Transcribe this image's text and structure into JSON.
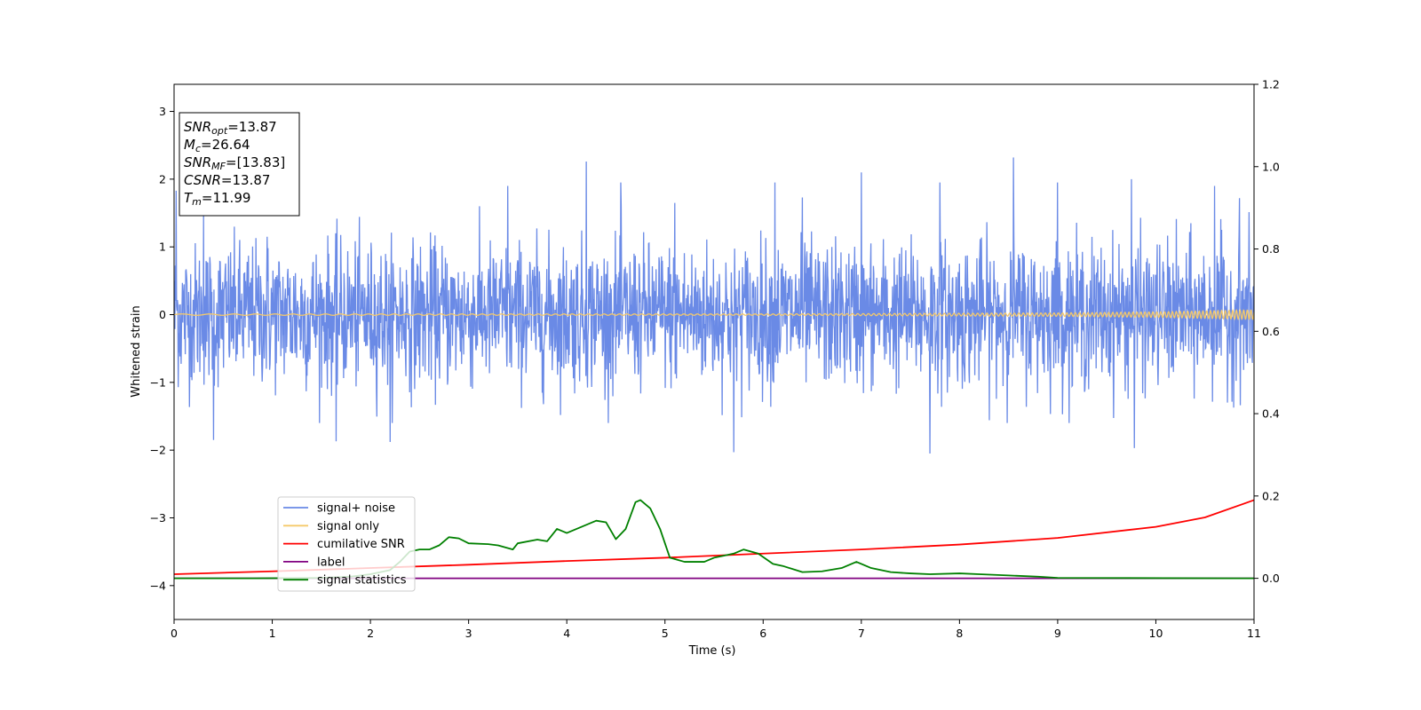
{
  "chart_data": {
    "type": "line",
    "title": "",
    "xlabel": "Time (s)",
    "ylabel": "Whitened strain",
    "y2label": "",
    "xlim": [
      0,
      11
    ],
    "ylim": [
      -4.5,
      3.4
    ],
    "y2lim": [
      -0.1,
      1.2
    ],
    "xticks": [
      0,
      1,
      2,
      3,
      4,
      5,
      6,
      7,
      8,
      9,
      10,
      11
    ],
    "yticks": [
      -4,
      -3,
      -2,
      -1,
      0,
      1,
      2,
      3
    ],
    "y2ticks": [
      0.0,
      0.2,
      0.4,
      0.6,
      0.8,
      1.0,
      1.2
    ],
    "grid": false,
    "legend_position": "lower-left",
    "info_box": [
      {
        "base": "SNR",
        "sub": "opt",
        "value": "=13.87"
      },
      {
        "base": "M",
        "sub": "c",
        "value": "=26.64"
      },
      {
        "base": "SNR",
        "sub": "MF",
        "value": "=[13.83]"
      },
      {
        "base": "CSNR",
        "sub": "",
        "value": "=13.87"
      },
      {
        "base": "T",
        "sub": "m",
        "value": "=11.99"
      }
    ],
    "series": [
      {
        "name": "signal+ noise",
        "axis": "left",
        "color": "#6a8ae6",
        "style": "noise",
        "sigma": 0.52,
        "peaks": [
          [
            0.02,
            1.83
          ],
          [
            0.3,
            1.5
          ],
          [
            0.4,
            -1.85
          ],
          [
            0.95,
            1.15
          ],
          [
            1.65,
            -1.87
          ],
          [
            2.2,
            -1.88
          ],
          [
            3.4,
            1.9
          ],
          [
            4.2,
            2.26
          ],
          [
            4.55,
            1.95
          ],
          [
            5.1,
            1.65
          ],
          [
            5.7,
            -2.03
          ],
          [
            6.12,
            1.95
          ],
          [
            6.4,
            1.73
          ],
          [
            7.0,
            2.1
          ],
          [
            7.7,
            -2.05
          ],
          [
            7.8,
            1.95
          ],
          [
            8.55,
            2.32
          ],
          [
            9.0,
            1.95
          ],
          [
            9.75,
            2.0
          ],
          [
            9.78,
            -1.97
          ],
          [
            10.6,
            1.9
          ],
          [
            10.85,
            1.72
          ]
        ]
      },
      {
        "name": "signal only",
        "axis": "left",
        "color": "#f5c96a",
        "style": "chirp",
        "points": [
          [
            0,
            0.01
          ],
          [
            6.0,
            0.01
          ],
          [
            9.0,
            0.025
          ],
          [
            10.0,
            0.04
          ],
          [
            11.0,
            0.07
          ]
        ]
      },
      {
        "name": "cumilative SNR",
        "axis": "right",
        "color": "#ff0000",
        "style": "line",
        "points": [
          [
            0,
            0.01
          ],
          [
            1,
            0.017
          ],
          [
            2,
            0.025
          ],
          [
            3,
            0.033
          ],
          [
            4,
            0.042
          ],
          [
            5,
            0.05
          ],
          [
            6,
            0.06
          ],
          [
            7,
            0.07
          ],
          [
            8,
            0.082
          ],
          [
            9,
            0.098
          ],
          [
            10,
            0.125
          ],
          [
            10.5,
            0.148
          ],
          [
            11,
            0.19
          ]
        ]
      },
      {
        "name": "label",
        "axis": "right",
        "color": "#800080",
        "style": "line",
        "points": [
          [
            0,
            0.0
          ],
          [
            11,
            0.0
          ]
        ]
      },
      {
        "name": "signal statistics",
        "axis": "right",
        "color": "#008000",
        "style": "line",
        "points": [
          [
            0,
            0.0
          ],
          [
            0.8,
            0.0
          ],
          [
            1.5,
            0.001
          ],
          [
            1.8,
            0.004
          ],
          [
            2.0,
            0.01
          ],
          [
            2.2,
            0.02
          ],
          [
            2.3,
            0.04
          ],
          [
            2.4,
            0.065
          ],
          [
            2.5,
            0.07
          ],
          [
            2.6,
            0.07
          ],
          [
            2.7,
            0.08
          ],
          [
            2.8,
            0.1
          ],
          [
            2.9,
            0.097
          ],
          [
            3.0,
            0.085
          ],
          [
            3.2,
            0.083
          ],
          [
            3.3,
            0.08
          ],
          [
            3.45,
            0.07
          ],
          [
            3.5,
            0.085
          ],
          [
            3.7,
            0.094
          ],
          [
            3.8,
            0.09
          ],
          [
            3.9,
            0.12
          ],
          [
            4.0,
            0.11
          ],
          [
            4.1,
            0.12
          ],
          [
            4.2,
            0.13
          ],
          [
            4.3,
            0.14
          ],
          [
            4.4,
            0.136
          ],
          [
            4.5,
            0.095
          ],
          [
            4.6,
            0.12
          ],
          [
            4.7,
            0.185
          ],
          [
            4.75,
            0.19
          ],
          [
            4.85,
            0.17
          ],
          [
            4.95,
            0.12
          ],
          [
            5.05,
            0.05
          ],
          [
            5.2,
            0.04
          ],
          [
            5.4,
            0.04
          ],
          [
            5.5,
            0.05
          ],
          [
            5.6,
            0.055
          ],
          [
            5.7,
            0.06
          ],
          [
            5.8,
            0.07
          ],
          [
            5.95,
            0.06
          ],
          [
            6.1,
            0.035
          ],
          [
            6.2,
            0.03
          ],
          [
            6.4,
            0.015
          ],
          [
            6.6,
            0.017
          ],
          [
            6.8,
            0.025
          ],
          [
            6.95,
            0.04
          ],
          [
            7.1,
            0.025
          ],
          [
            7.3,
            0.015
          ],
          [
            7.5,
            0.012
          ],
          [
            7.7,
            0.01
          ],
          [
            8.0,
            0.012
          ],
          [
            8.2,
            0.01
          ],
          [
            8.5,
            0.007
          ],
          [
            8.8,
            0.004
          ],
          [
            9.0,
            0.001
          ],
          [
            11.0,
            0.0
          ]
        ]
      }
    ]
  }
}
